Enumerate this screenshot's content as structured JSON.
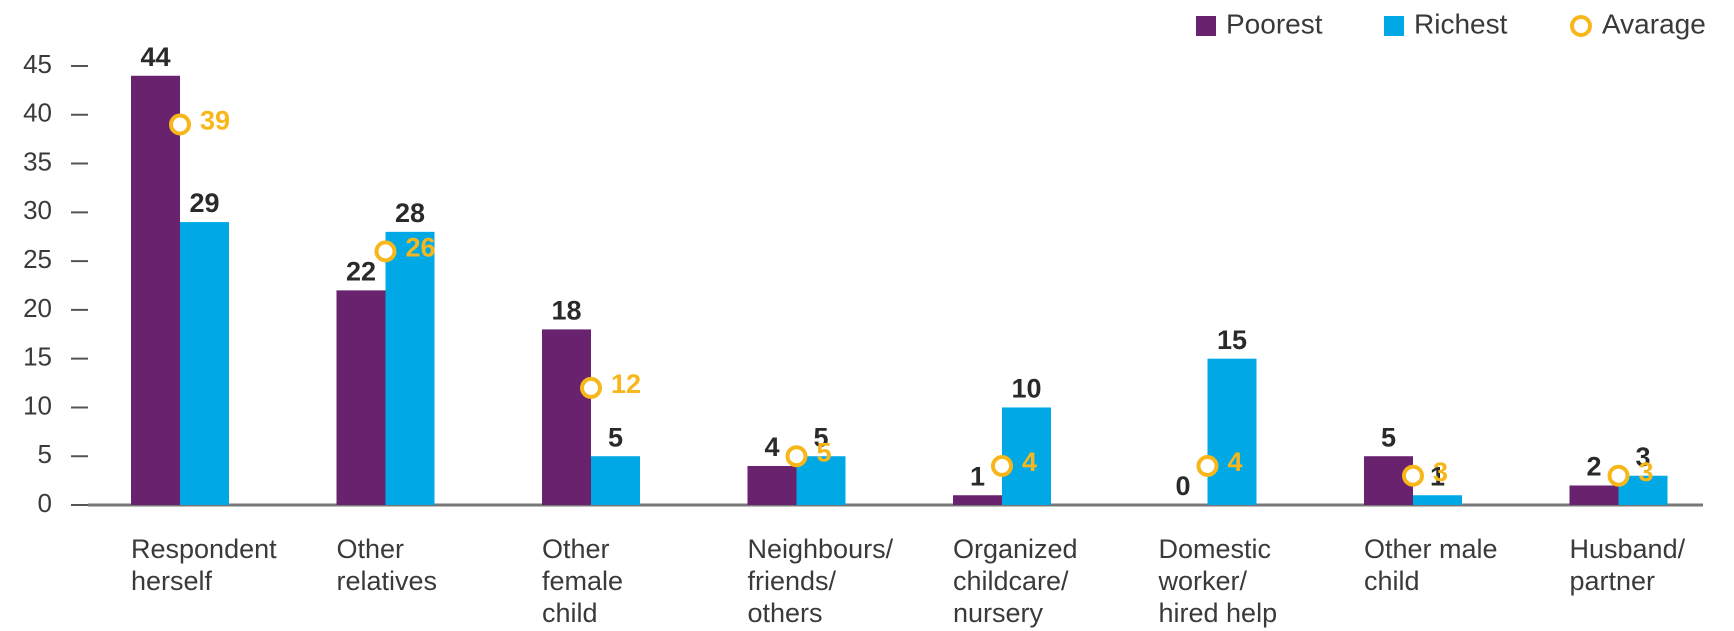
{
  "chart_data": {
    "type": "bar",
    "categories": [
      "Respondent\nherself",
      "Other\nrelatives",
      "Other\nfemale\nchild",
      "Neighbours/\nfriends/\nothers",
      "Organized\nchildcare/\nnursery",
      "Domestic\nworker/\nhired help",
      "Other male\nchild",
      "Husband/\npartner"
    ],
    "series": [
      {
        "name": "Poorest",
        "color": "#68226e",
        "values": [
          44,
          22,
          18,
          4,
          1,
          0,
          5,
          2
        ]
      },
      {
        "name": "Richest",
        "color": "#00a9e6",
        "values": [
          29,
          28,
          5,
          5,
          10,
          15,
          1,
          3
        ]
      },
      {
        "name": "Avarage",
        "color": "#f7b71a",
        "marker": "circle",
        "values": [
          39,
          26,
          12,
          5,
          4,
          4,
          3,
          3
        ]
      }
    ],
    "ylim": [
      0,
      45
    ],
    "yticks": [
      0,
      5,
      10,
      15,
      20,
      25,
      30,
      35,
      40,
      45
    ],
    "legend": "top-right"
  }
}
